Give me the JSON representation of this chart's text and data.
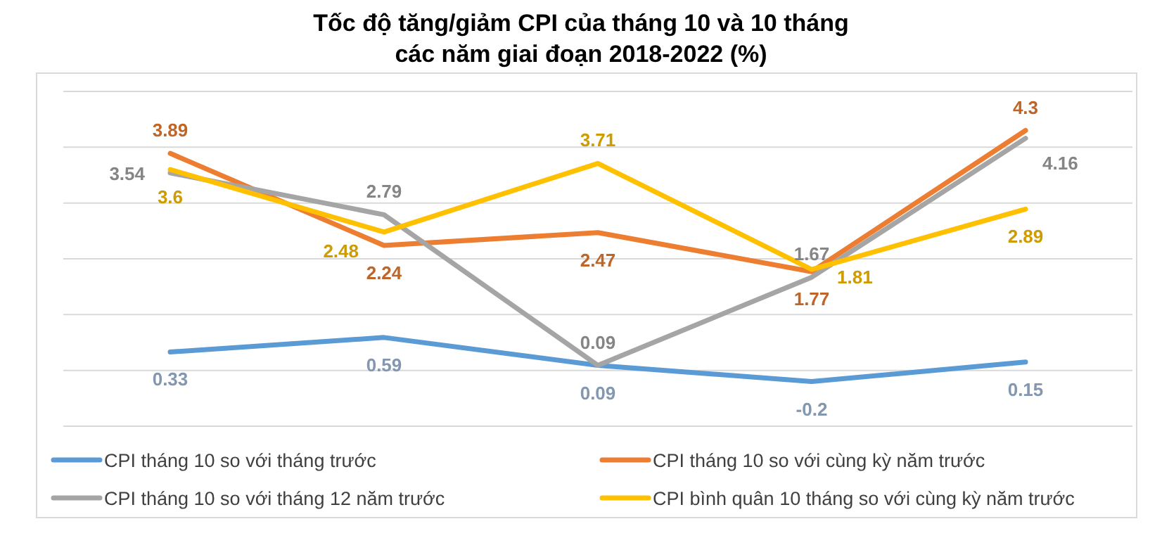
{
  "chart_data": {
    "type": "line",
    "title": "Tốc độ tăng/giảm CPI của tháng 10 và 10 tháng\ncác năm giai đoạn 2018-2022 (%)",
    "categories": [
      null,
      null,
      null,
      null,
      null
    ],
    "series": [
      {
        "name": "CPI tháng 10 so với tháng trước",
        "color": "#5b9bd5",
        "values": [
          0.33,
          0.59,
          0.09,
          -0.2,
          0.15
        ]
      },
      {
        "name": "CPI tháng 10 so với cùng kỳ năm trước",
        "color": "#ed7d31",
        "values": [
          3.89,
          2.24,
          2.47,
          1.77,
          4.3
        ]
      },
      {
        "name": "CPI tháng 10 so với tháng 12 năm trước",
        "color": "#a5a5a5",
        "values": [
          3.54,
          2.79,
          0.09,
          1.67,
          4.16
        ]
      },
      {
        "name": "CPI bình quân 10 tháng so với cùng kỳ năm trước",
        "color": "#ffc000",
        "values": [
          3.6,
          2.48,
          3.71,
          1.81,
          2.89
        ]
      }
    ],
    "ylim": [
      -1,
      5
    ],
    "yticks": [
      {
        "value": -1,
        "label": null
      },
      {
        "value": 0,
        "label": null
      },
      {
        "value": 1,
        "label": null
      },
      {
        "value": 2,
        "label": null
      },
      {
        "value": 3,
        "label": null
      },
      {
        "value": 4,
        "label": null
      },
      {
        "value": 5,
        "label": null
      }
    ],
    "grid": "y",
    "data_labels": true,
    "legend": "bottom",
    "marker": "none",
    "line_style": "solid"
  }
}
